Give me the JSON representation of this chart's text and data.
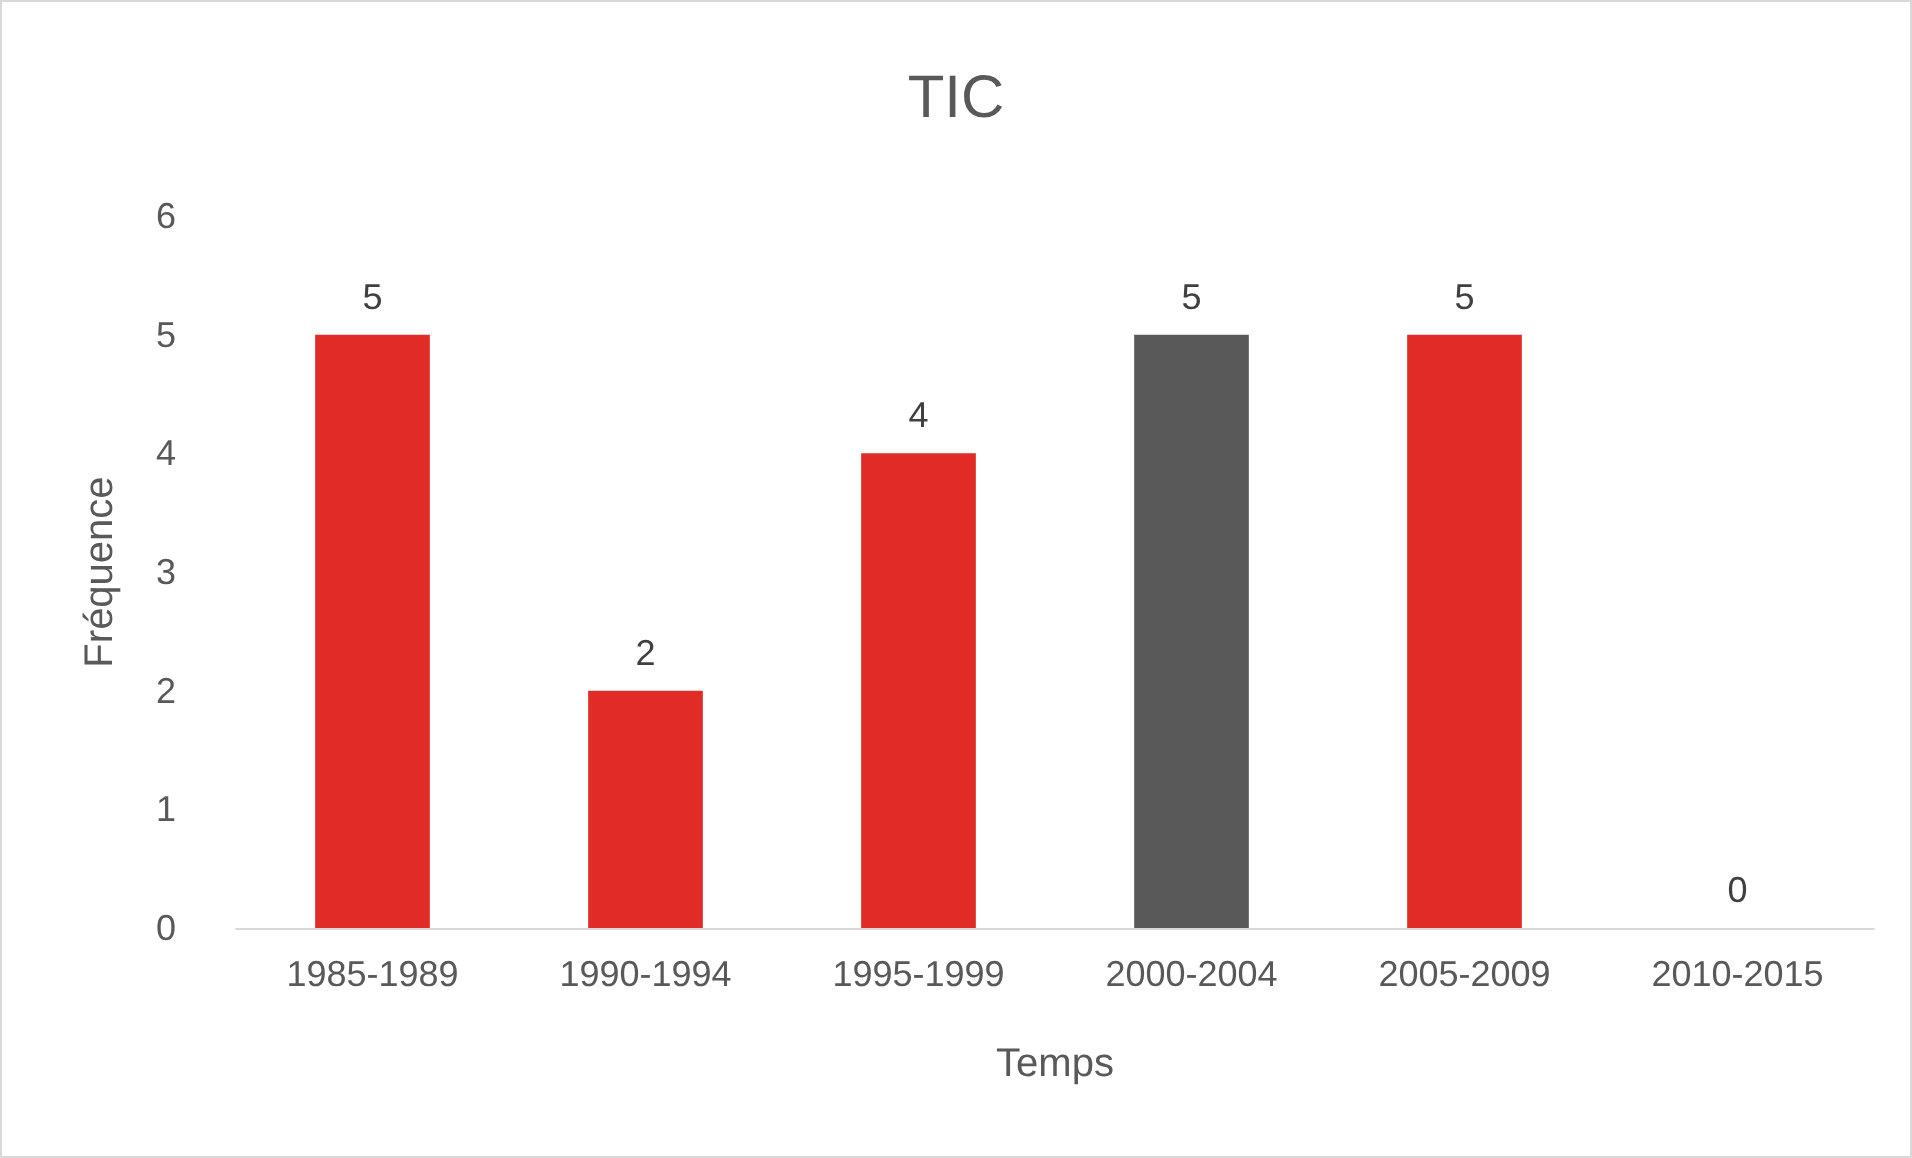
{
  "chart_data": {
    "type": "bar",
    "title": "TIC",
    "xlabel": "Temps",
    "ylabel": "Fréquence",
    "categories": [
      "1985-1989",
      "1990-1994",
      "1995-1999",
      "2000-2004",
      "2005-2009",
      "2010-2015"
    ],
    "values": [
      5,
      2,
      4,
      5,
      5,
      0
    ],
    "colors": [
      "#e02b26",
      "#e02b26",
      "#e02b26",
      "#595959",
      "#e02b26",
      "#e02b26"
    ],
    "ylim": [
      0,
      6
    ],
    "yticks": [
      0,
      1,
      2,
      3,
      4,
      5,
      6
    ],
    "data_labels": true
  }
}
